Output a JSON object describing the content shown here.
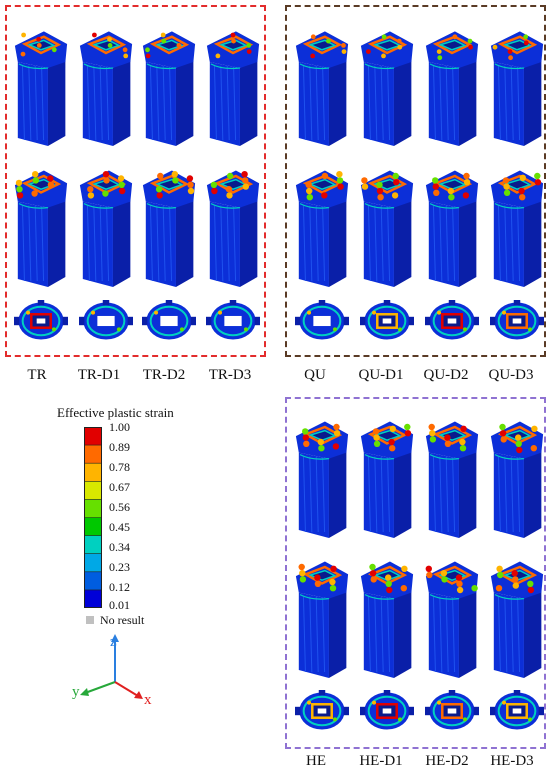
{
  "panels": {
    "tr": {
      "frame_color": "#e32c2c",
      "models": [
        "TR",
        "TR-D1",
        "TR-D2",
        "TR-D3"
      ]
    },
    "qu": {
      "frame_color": "#5a3b25",
      "models": [
        "QU",
        "QU-D1",
        "QU-D2",
        "QU-D3"
      ]
    },
    "he": {
      "frame_color": "#8f72d2",
      "models": [
        "HE",
        "HE-D1",
        "HE-D2",
        "HE-D3"
      ]
    }
  },
  "legend": {
    "title": "Effective plastic strain",
    "ticks": [
      "1.00",
      "0.89",
      "0.78",
      "0.67",
      "0.56",
      "0.45",
      "0.34",
      "0.23",
      "0.12",
      "0.01"
    ],
    "no_result": "No result",
    "colors": [
      "#e10000",
      "#ff6a00",
      "#ffb400",
      "#d8e800",
      "#66e000",
      "#00c800",
      "#00d0c0",
      "#00a8e6",
      "#005de0",
      "#0000d8"
    ],
    "no_result_color": "#c0c0c0"
  },
  "axes": {
    "z": "z",
    "y": "y",
    "x": "x",
    "z_color": "#2a7fe0",
    "y_color": "#27a83a",
    "x_color": "#e02020"
  }
}
